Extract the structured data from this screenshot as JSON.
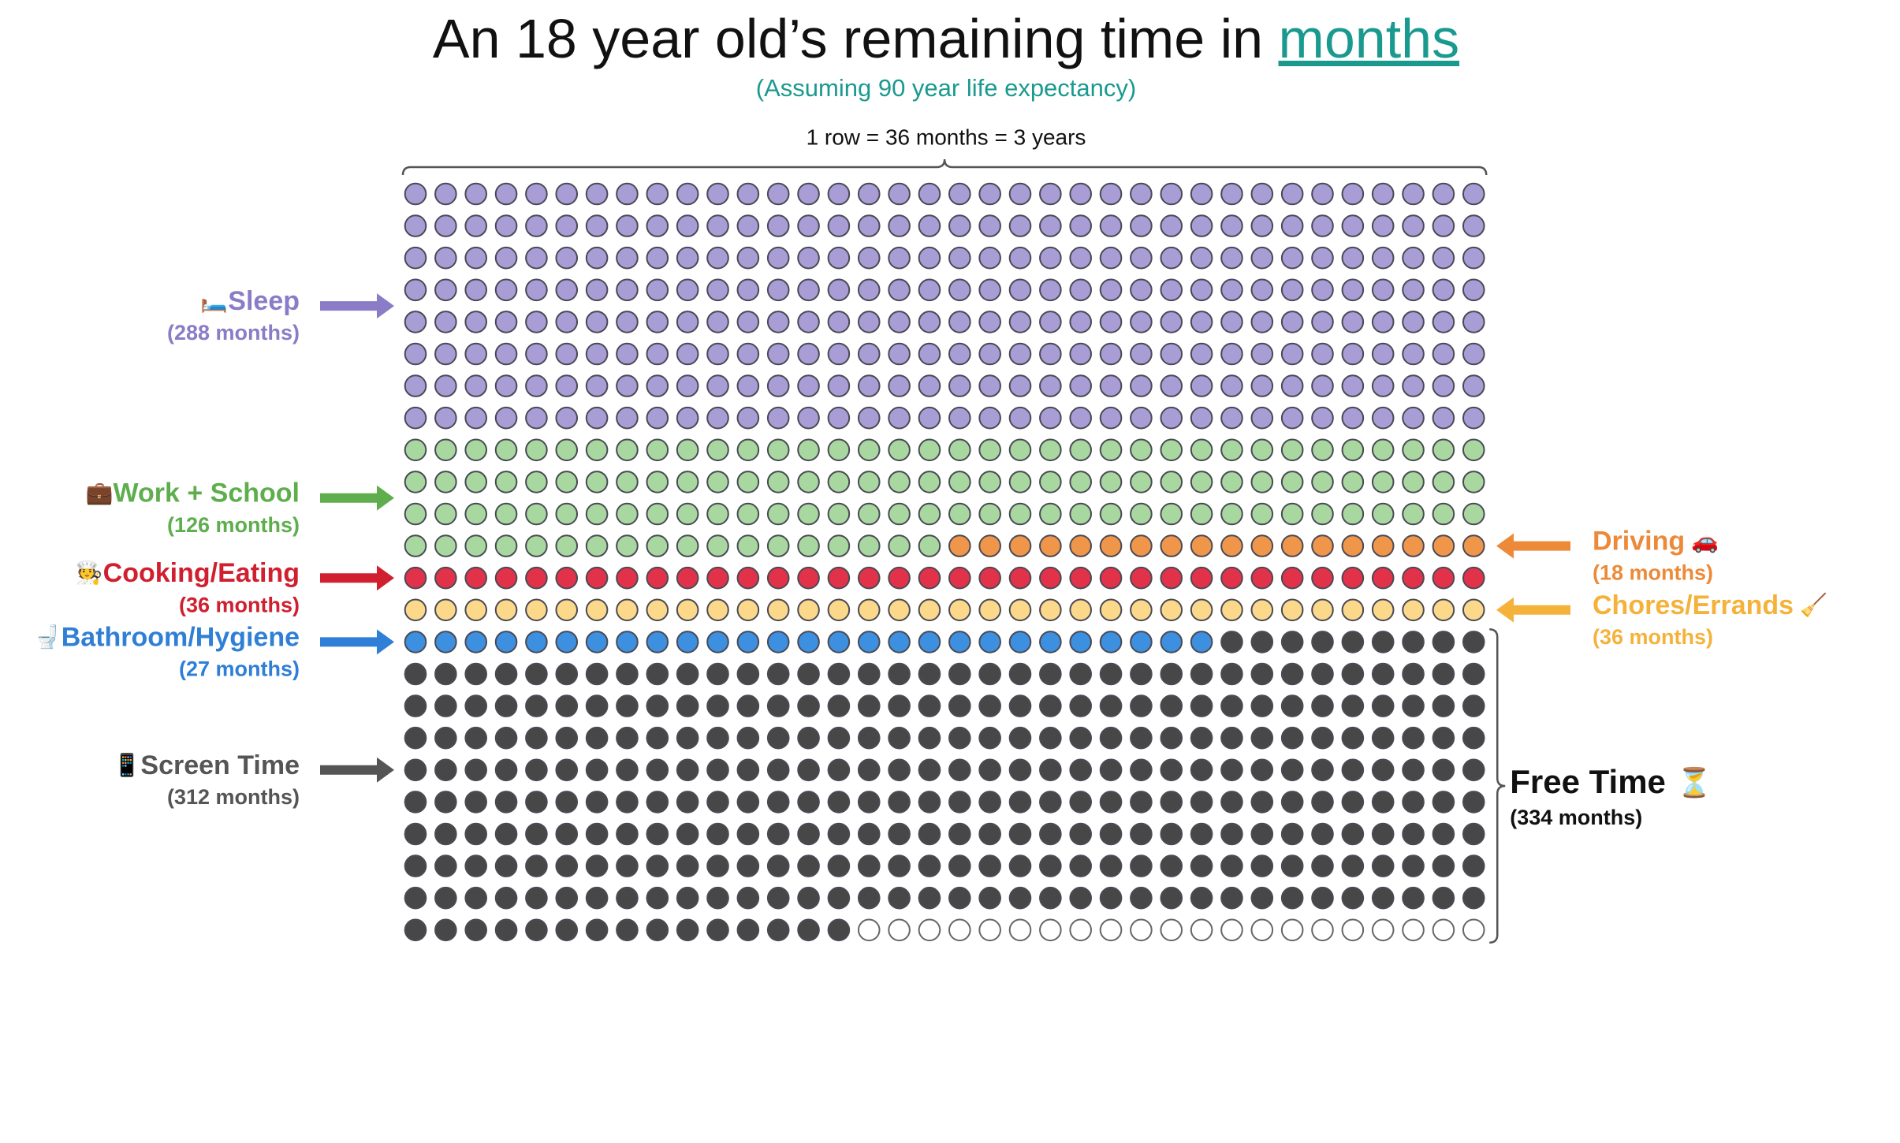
{
  "chart_data": {
    "type": "waffle",
    "title": "An 18 year old’s remaining time in",
    "title_emphasis": "months",
    "subtitle": "(Assuming 90 year life expectancy)",
    "row_note": "1 row = 36 months = 3 years",
    "columns": 36,
    "rows": 24,
    "series": [
      {
        "name": "Sleep",
        "icon": "🛏️",
        "color": "#a99dd6",
        "label_color": "#8a7cc6",
        "side": "left",
        "value": 288,
        "value_label": "(288 months)"
      },
      {
        "name": "Work + School",
        "icon": "💼",
        "color": "#a8d8a0",
        "label_color": "#5fae4e",
        "side": "left",
        "value": 126,
        "value_label": "(126 months)"
      },
      {
        "name": "Driving",
        "icon": "🚗",
        "color": "#f0964a",
        "label_color": "#ec8a3a",
        "side": "right",
        "value": 18,
        "value_label": "(18 months)"
      },
      {
        "name": "Cooking/Eating",
        "icon": "🧑‍🍳",
        "color": "#e2324a",
        "label_color": "#d0202f",
        "side": "left",
        "value": 36,
        "value_label": "(36 months)"
      },
      {
        "name": "Chores/Errands",
        "icon": "🧹",
        "color": "#fcd98a",
        "label_color": "#f5b23a",
        "side": "right",
        "value": 36,
        "value_label": "(36 months)"
      },
      {
        "name": "Bathroom/Hygiene",
        "icon": "🚽",
        "color": "#3d8fe0",
        "label_color": "#2f7fd6",
        "side": "left",
        "value": 27,
        "value_label": "(27 months)"
      },
      {
        "name": "Screen Time",
        "icon": "📱",
        "color": "#474747",
        "label_color": "#555555",
        "side": "left",
        "value": 312,
        "value_label": "(312 months)"
      }
    ],
    "bracket": {
      "name": "Free Time",
      "icon": "⏳",
      "value": 334,
      "value_label": "(334 months)"
    }
  }
}
